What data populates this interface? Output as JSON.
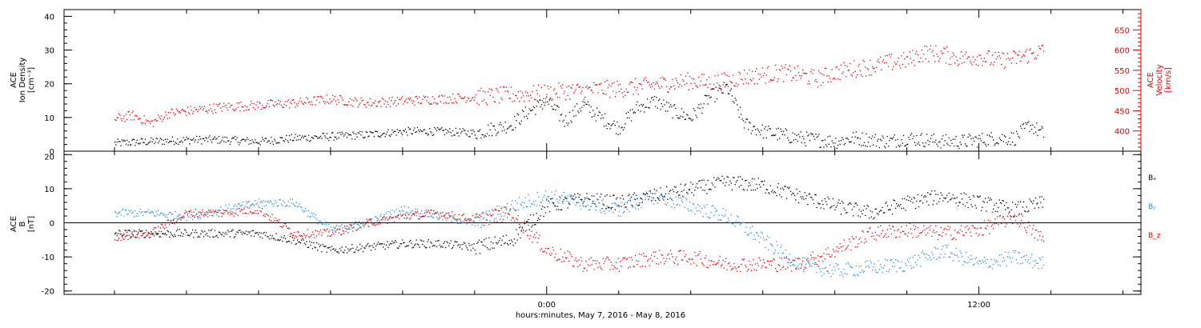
{
  "chart_data": [
    {
      "type": "scatter",
      "panel": "plasma",
      "ylabel_left": [
        "ACE",
        "Ion Density",
        "[cm⁻³]"
      ],
      "ylabel_right": [
        "ACE",
        "Velocity",
        "[km/s]"
      ],
      "ylim_left": [
        0,
        42
      ],
      "ylim_right": [
        350,
        700
      ],
      "yticks_left": [
        "0",
        "10",
        "20",
        "30",
        "40"
      ],
      "yticks_right": [
        "400",
        "450",
        "500",
        "550",
        "600",
        "650"
      ],
      "series": [
        {
          "name": "",
          "axis": "left",
          "color": "#000000",
          "x": [
            -12.0,
            -11.0,
            -10.0,
            -9.0,
            -8.0,
            -7.0,
            -6.0,
            -5.0,
            -4.0,
            -3.0,
            -2.0,
            -1.0,
            -0.5,
            0.0,
            0.5,
            1.0,
            1.5,
            2.0,
            2.5,
            3.0,
            3.5,
            4.0,
            4.5,
            5.0,
            5.5,
            6.0,
            6.5,
            7.0,
            7.5,
            8.0,
            8.5,
            9.0,
            9.5,
            10.0,
            10.5,
            11.0,
            11.5,
            12.0,
            12.5,
            13.0,
            13.4,
            13.8
          ],
          "y": [
            2.5,
            3.0,
            3.5,
            3.5,
            3.0,
            4.0,
            4.5,
            5.0,
            6.0,
            6.0,
            5.5,
            8.0,
            12.0,
            15.0,
            9.0,
            14.0,
            10.0,
            7.0,
            13.0,
            15.0,
            12.0,
            10.0,
            16.0,
            19.0,
            8.0,
            6.0,
            5.0,
            4.0,
            3.5,
            3.0,
            4.0,
            3.5,
            3.0,
            4.0,
            3.5,
            3.0,
            3.0,
            3.5,
            4.0,
            4.0,
            8.0,
            5.0
          ]
        },
        {
          "name": "",
          "axis": "right",
          "color": "#e00000",
          "x": [
            -12.0,
            -11.5,
            -11.0,
            -10.5,
            -10.0,
            -9.0,
            -8.0,
            -7.0,
            -6.0,
            -5.0,
            -4.0,
            -3.0,
            -2.0,
            -1.0,
            0.0,
            0.5,
            1.0,
            1.5,
            2.0,
            2.5,
            3.0,
            3.5,
            4.0,
            4.5,
            5.0,
            5.5,
            6.0,
            6.5,
            7.0,
            7.5,
            8.0,
            8.5,
            9.0,
            9.5,
            10.0,
            10.5,
            11.0,
            11.5,
            12.0,
            12.5,
            13.0,
            13.4,
            13.8
          ],
          "y": [
            430,
            440,
            420,
            445,
            450,
            460,
            465,
            470,
            480,
            470,
            475,
            480,
            485,
            490,
            495,
            500,
            500,
            505,
            505,
            510,
            515,
            520,
            525,
            520,
            525,
            535,
            540,
            545,
            540,
            530,
            545,
            555,
            560,
            570,
            575,
            595,
            590,
            580,
            585,
            575,
            580,
            590,
            600
          ]
        }
      ]
    },
    {
      "type": "scatter",
      "panel": "magnetic-field",
      "ylabel_left": [
        "ACE",
        "B",
        "[nT]"
      ],
      "ylim": [
        -21,
        21
      ],
      "yticks": [
        "-20",
        "-10",
        "0",
        "10",
        "20"
      ],
      "legend": [
        "Bₓ",
        "Bᵧ",
        "B_z"
      ],
      "legend_placement": "right",
      "series": [
        {
          "name": "Bₓ",
          "color": "#000000",
          "x": [
            -12.0,
            -11.0,
            -10.0,
            -9.0,
            -8.0,
            -7.0,
            -6.0,
            -5.0,
            -4.0,
            -3.0,
            -2.0,
            -1.0,
            0.0,
            1.0,
            2.0,
            3.0,
            4.0,
            5.0,
            6.0,
            7.0,
            8.0,
            9.0,
            10.0,
            11.0,
            12.0,
            13.0,
            13.8
          ],
          "y": [
            -3.0,
            -3.0,
            -3.0,
            -3.0,
            -3.0,
            -5.0,
            -8.0,
            -7.0,
            -6.0,
            -6.0,
            -7.0,
            -5.0,
            5.0,
            7.0,
            6.0,
            8.0,
            10.0,
            12.0,
            11.0,
            8.0,
            5.0,
            3.0,
            6.0,
            8.0,
            6.0,
            4.0,
            6.0
          ]
        },
        {
          "name": "Bᵧ",
          "color": "#1e8fd8",
          "x": [
            -12.0,
            -11.0,
            -10.0,
            -9.0,
            -8.0,
            -7.0,
            -6.0,
            -5.0,
            -4.0,
            -3.0,
            -2.0,
            -1.0,
            0.0,
            1.0,
            2.0,
            3.0,
            4.0,
            5.0,
            6.0,
            7.0,
            8.0,
            9.0,
            10.0,
            11.0,
            12.0,
            13.0,
            13.8
          ],
          "y": [
            3.0,
            3.0,
            2.0,
            4.0,
            6.0,
            6.0,
            -2.0,
            0.0,
            4.0,
            2.0,
            0.0,
            5.0,
            8.0,
            6.0,
            4.0,
            8.0,
            5.0,
            2.0,
            -5.0,
            -12.0,
            -14.0,
            -13.0,
            -12.0,
            -8.0,
            -12.0,
            -10.0,
            -12.0
          ]
        },
        {
          "name": "B_z",
          "color": "#e00000",
          "x": [
            -12.0,
            -11.0,
            -10.0,
            -9.0,
            -8.0,
            -7.0,
            -6.0,
            -5.0,
            -4.0,
            -3.0,
            -2.0,
            -1.0,
            0.0,
            1.0,
            2.0,
            3.0,
            4.0,
            5.0,
            6.0,
            7.0,
            8.0,
            9.0,
            10.0,
            11.0,
            12.0,
            13.0,
            13.8
          ],
          "y": [
            -4.0,
            -3.0,
            3.0,
            3.0,
            4.0,
            -3.0,
            -3.0,
            0.0,
            2.0,
            3.0,
            1.0,
            3.0,
            -8.0,
            -12.0,
            -12.0,
            -10.0,
            -10.0,
            -12.0,
            -12.0,
            -12.0,
            -8.0,
            -3.0,
            -2.0,
            -3.0,
            -2.0,
            2.0,
            -5.0
          ]
        }
      ]
    }
  ],
  "x_axis": {
    "xlim": [
      -13.4,
      16.5
    ],
    "tick_values": [
      0,
      12
    ],
    "tick_labels": [
      "0:00",
      "12:00"
    ],
    "minor_step_hours": 2,
    "xlabel": "hours:minutes, May  7, 2016 - May  8, 2016"
  }
}
